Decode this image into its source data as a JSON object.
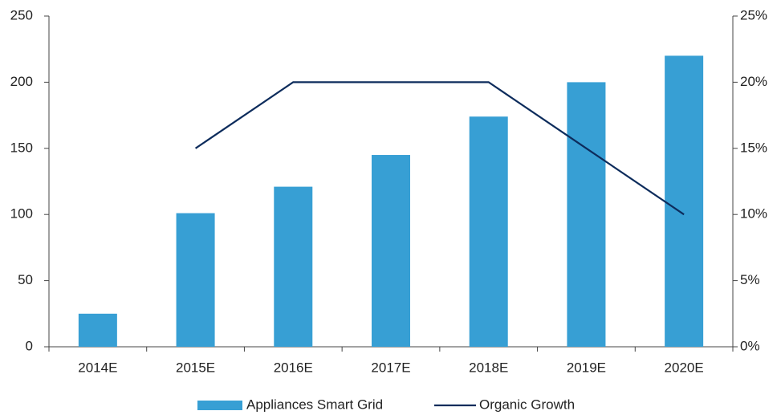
{
  "chart_data": {
    "type": "bar",
    "categories": [
      "2014E",
      "2015E",
      "2016E",
      "2017E",
      "2018E",
      "2019E",
      "2020E"
    ],
    "series": [
      {
        "name": "Appliances Smart Grid",
        "type": "bar",
        "color": "#379fd4",
        "values": [
          25,
          101,
          121,
          145,
          174,
          200,
          220
        ]
      },
      {
        "name": "Organic Growth",
        "type": "line",
        "axis": "y2",
        "color": "#0d2c5c",
        "values": [
          null,
          15,
          20,
          20,
          20,
          15,
          10
        ]
      }
    ],
    "ylim": [
      0,
      250
    ],
    "yticks": [
      0,
      50,
      100,
      150,
      200,
      250
    ],
    "y2lim": [
      0,
      25
    ],
    "y2ticks": [
      {
        "value": 0,
        "label": "0%"
      },
      {
        "value": 5,
        "label": "5%"
      },
      {
        "value": 10,
        "label": "10%"
      },
      {
        "value": 15,
        "label": "15%"
      },
      {
        "value": 20,
        "label": "20%"
      },
      {
        "value": 25,
        "label": "25%"
      }
    ],
    "grid": false,
    "legend": "bottom"
  }
}
